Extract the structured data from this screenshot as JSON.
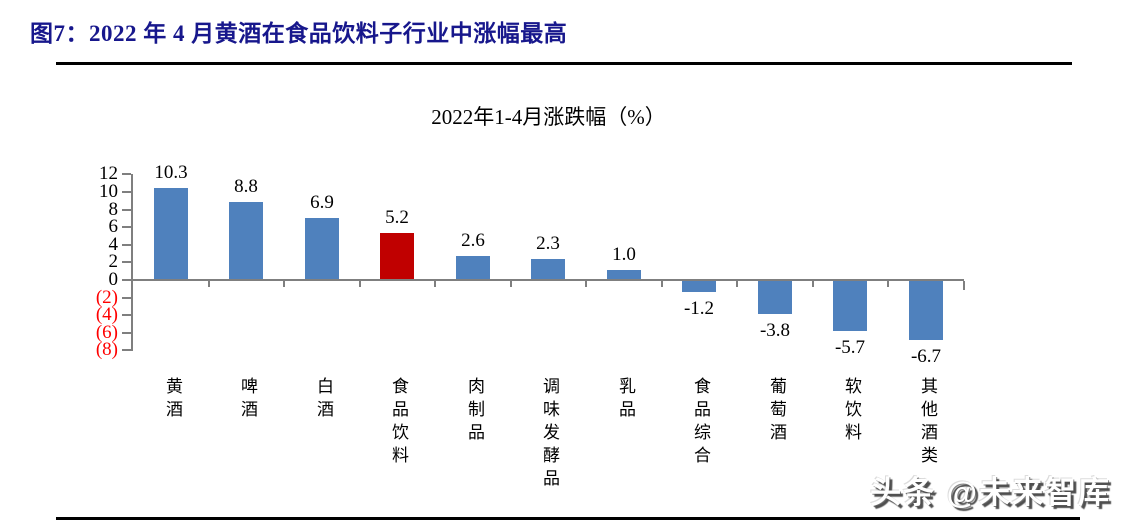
{
  "figure": {
    "title": "图7：2022 年 4 月黄酒在食品饮料子行业中涨幅最高",
    "title_color": "#17178C",
    "watermark": "头条 @未来智库"
  },
  "chart_data": {
    "type": "bar",
    "title": "2022年1-4月涨跌幅（%）",
    "categories": [
      "黄酒",
      "啤酒",
      "白酒",
      "食品饮料",
      "肉制品",
      "调味发酵品",
      "乳品",
      "食品综合",
      "葡萄酒",
      "软饮料",
      "其他酒类"
    ],
    "values": [
      10.3,
      8.8,
      6.9,
      5.2,
      2.6,
      2.3,
      1.0,
      -1.2,
      -3.8,
      -5.7,
      -6.7
    ],
    "data_labels": [
      "10.3",
      "8.8",
      "6.9",
      "5.2",
      "2.6",
      "2.3",
      "1.0",
      "-1.2",
      "-3.8",
      "-5.7",
      "-6.7"
    ],
    "highlight_index": 3,
    "ylim": [
      -8,
      12
    ],
    "y_ticks": [
      {
        "value": 12,
        "label": "12"
      },
      {
        "value": 10,
        "label": "10"
      },
      {
        "value": 8,
        "label": "8"
      },
      {
        "value": 6,
        "label": "6"
      },
      {
        "value": 4,
        "label": "4"
      },
      {
        "value": 2,
        "label": "2"
      },
      {
        "value": 0,
        "label": "0"
      },
      {
        "value": -2,
        "label": "(2)"
      },
      {
        "value": -4,
        "label": "(4)"
      },
      {
        "value": -6,
        "label": "(6)"
      },
      {
        "value": -8,
        "label": "(8)"
      }
    ],
    "grid": false,
    "legend": null,
    "colors": {
      "bar": "#4F81BD",
      "highlight": "#C00000",
      "negative_axis_label": "#FF0000",
      "axis_line": "#7F7F7F"
    }
  }
}
